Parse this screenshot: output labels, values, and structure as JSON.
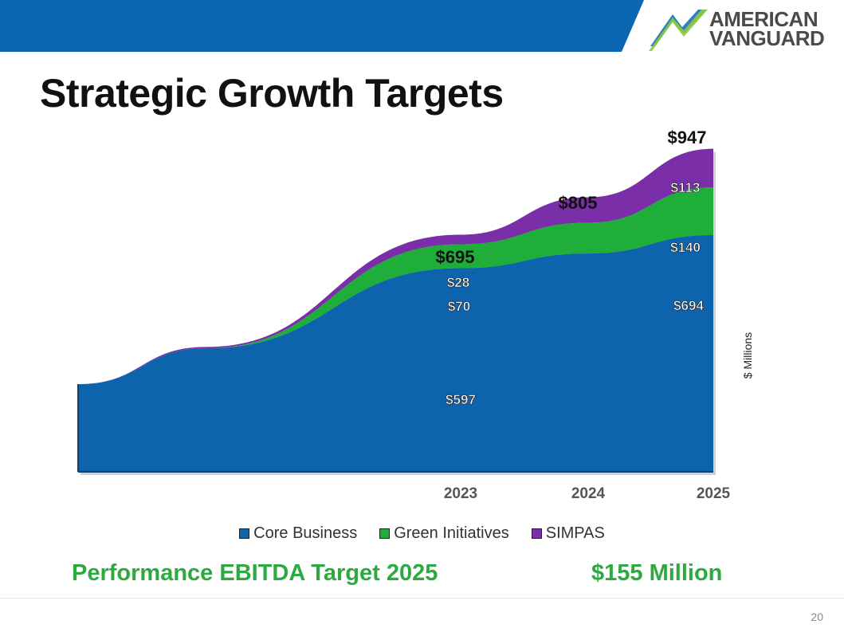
{
  "slide": {
    "title": "Strategic Growth Targets",
    "page_number": "20",
    "bottom_left_text": "Performance EBITDA Target 2025",
    "bottom_right_text": "$155 Million"
  },
  "logo": {
    "line1": "AMERICAN",
    "line2": "VANGUARD",
    "icon": "chevron-check-logo-icon"
  },
  "colors": {
    "topbar": "#0a66b0",
    "core": "#0e63ad",
    "green": "#1fae3a",
    "simpas": "#7a2ea8",
    "accent_green_text": "#2daa3f"
  },
  "chart_data": {
    "type": "area",
    "stacked": true,
    "x": [
      "",
      "",
      "2023",
      "2024",
      "2025"
    ],
    "x_labels_shown": [
      "2023",
      "2024",
      "2025"
    ],
    "ylabel": "$ Millions",
    "series": [
      {
        "name": "Core Business",
        "values": [
          null,
          null,
          597,
          null,
          694
        ],
        "color": "#0e63ad"
      },
      {
        "name": "Green Initiatives",
        "values": [
          null,
          null,
          70,
          null,
          140
        ],
        "color": "#1fae3a"
      },
      {
        "name": "SIMPAS",
        "values": [
          null,
          null,
          28,
          null,
          113
        ],
        "color": "#7a2ea8"
      }
    ],
    "totals": {
      "2023": "$695",
      "2024": "$805",
      "2025": "$947"
    },
    "segment_labels": [
      {
        "text": "$597",
        "series": "Core Business",
        "x": "2023"
      },
      {
        "text": "$70",
        "series": "Green Initiatives",
        "x": "2023"
      },
      {
        "text": "$28",
        "series": "SIMPAS",
        "x": "2023"
      },
      {
        "text": "$694",
        "series": "Core Business",
        "x": "2025"
      },
      {
        "text": "$140",
        "series": "Green Initiatives",
        "x": "2025"
      },
      {
        "text": "$113",
        "series": "SIMPAS",
        "x": "2025"
      }
    ],
    "legend": [
      "Core Business",
      "Green Initiatives",
      "SIMPAS"
    ],
    "legend_placement": "bottom"
  }
}
